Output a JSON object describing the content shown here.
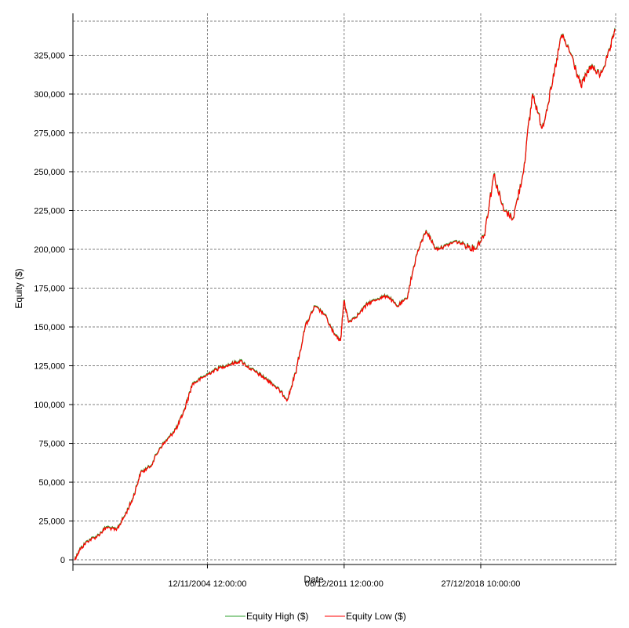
{
  "chart_data": {
    "type": "line",
    "title": "",
    "xlabel": "Date",
    "ylabel": "Equity ($)",
    "xlim": [
      "1997-12-01",
      "2025-12-31"
    ],
    "ylim": [
      -3000,
      352000
    ],
    "x_ticks": [
      {
        "date": "2004-11-12",
        "label": "12/11/2004 12:00:00"
      },
      {
        "date": "2011-12-06",
        "label": "06/12/2011 12:00:00"
      },
      {
        "date": "2018-12-27",
        "label": "27/12/2018 10:00:00"
      }
    ],
    "y_ticks": [
      0,
      25000,
      50000,
      75000,
      100000,
      125000,
      150000,
      175000,
      200000,
      225000,
      250000,
      275000,
      300000,
      325000
    ],
    "y_tick_labels": [
      "0",
      "25,000",
      "50,000",
      "75,000",
      "100,000",
      "125,000",
      "150,000",
      "175,000",
      "200,000",
      "225,000",
      "250,000",
      "275,000",
      "300,000",
      "325,000"
    ],
    "grid": true,
    "legend_position": "bottom",
    "series": [
      {
        "name": "Equity High ($)",
        "color": "#2ca02c",
        "x": [
          "1998-01-01",
          "1998-04-01",
          "1998-09-01",
          "1999-03-01",
          "1999-09-01",
          "2000-03-01",
          "2000-08-01",
          "2001-01-01",
          "2001-06-01",
          "2001-12-01",
          "2002-06-01",
          "2002-12-01",
          "2003-05-01",
          "2003-09-01",
          "2004-02-01",
          "2004-08-01",
          "2005-02-01",
          "2005-08-01",
          "2006-02-01",
          "2006-08-01",
          "2007-02-01",
          "2007-08-01",
          "2007-12-01",
          "2008-03-01",
          "2008-08-01",
          "2009-01-01",
          "2009-06-01",
          "2009-12-01",
          "2010-06-01",
          "2010-12-01",
          "2011-06-01",
          "2011-10-01",
          "2011-12-01",
          "2012-03-01",
          "2012-09-01",
          "2013-03-01",
          "2013-09-01",
          "2014-03-01",
          "2014-09-01",
          "2015-03-01",
          "2015-09-01",
          "2016-03-01",
          "2016-09-01",
          "2017-03-01",
          "2017-09-01",
          "2018-03-01",
          "2018-09-01",
          "2019-03-01",
          "2019-09-01",
          "2020-03-01",
          "2020-09-01",
          "2021-03-01",
          "2021-09-01",
          "2022-03-01",
          "2022-09-01",
          "2023-03-01",
          "2023-09-01",
          "2024-03-01",
          "2024-09-01",
          "2025-03-01",
          "2025-09-01",
          "2025-12-01"
        ],
        "values": [
          0,
          6000,
          12000,
          15000,
          21000,
          19000,
          28000,
          39000,
          56000,
          60000,
          72000,
          79000,
          86000,
          96000,
          113000,
          117000,
          121000,
          124000,
          126000,
          128000,
          123000,
          119000,
          116000,
          114000,
          109000,
          103000,
          120000,
          150000,
          163000,
          158000,
          145000,
          141000,
          167000,
          153000,
          158000,
          165000,
          168000,
          170000,
          163000,
          168000,
          196000,
          212000,
          200000,
          202000,
          205000,
          203000,
          200000,
          209000,
          248000,
          225000,
          220000,
          248000,
          300000,
          278000,
          305000,
          338000,
          325000,
          305000,
          318000,
          312000,
          328000,
          342000
        ]
      },
      {
        "name": "Equity Low ($)",
        "color": "#ff0000",
        "x": [
          "1998-01-01",
          "1998-04-01",
          "1998-09-01",
          "1999-03-01",
          "1999-09-01",
          "2000-03-01",
          "2000-08-01",
          "2001-01-01",
          "2001-06-01",
          "2001-12-01",
          "2002-06-01",
          "2002-12-01",
          "2003-05-01",
          "2003-09-01",
          "2004-02-01",
          "2004-08-01",
          "2005-02-01",
          "2005-08-01",
          "2006-02-01",
          "2006-08-01",
          "2007-02-01",
          "2007-08-01",
          "2007-12-01",
          "2008-03-01",
          "2008-08-01",
          "2009-01-01",
          "2009-06-01",
          "2009-12-01",
          "2010-06-01",
          "2010-12-01",
          "2011-06-01",
          "2011-10-01",
          "2011-12-01",
          "2012-03-01",
          "2012-09-01",
          "2013-03-01",
          "2013-09-01",
          "2014-03-01",
          "2014-09-01",
          "2015-03-01",
          "2015-09-01",
          "2016-03-01",
          "2016-09-01",
          "2017-03-01",
          "2017-09-01",
          "2018-03-01",
          "2018-09-01",
          "2019-03-01",
          "2019-09-01",
          "2020-03-01",
          "2020-09-01",
          "2021-03-01",
          "2021-09-01",
          "2022-03-01",
          "2022-09-01",
          "2023-03-01",
          "2023-09-01",
          "2024-03-01",
          "2024-09-01",
          "2025-03-01",
          "2025-09-01",
          "2025-12-01"
        ],
        "values": [
          0,
          6000,
          12000,
          15000,
          21000,
          19000,
          28000,
          39000,
          56000,
          60000,
          72000,
          79000,
          86000,
          96000,
          113000,
          117000,
          121000,
          124000,
          126000,
          128000,
          123000,
          119000,
          116000,
          114000,
          109000,
          103000,
          120000,
          150000,
          163000,
          158000,
          145000,
          141000,
          167000,
          153000,
          158000,
          165000,
          168000,
          170000,
          163000,
          168000,
          196000,
          212000,
          200000,
          202000,
          205000,
          203000,
          200000,
          209000,
          248000,
          225000,
          220000,
          248000,
          300000,
          278000,
          305000,
          338000,
          325000,
          305000,
          318000,
          312000,
          328000,
          342000
        ]
      }
    ]
  }
}
